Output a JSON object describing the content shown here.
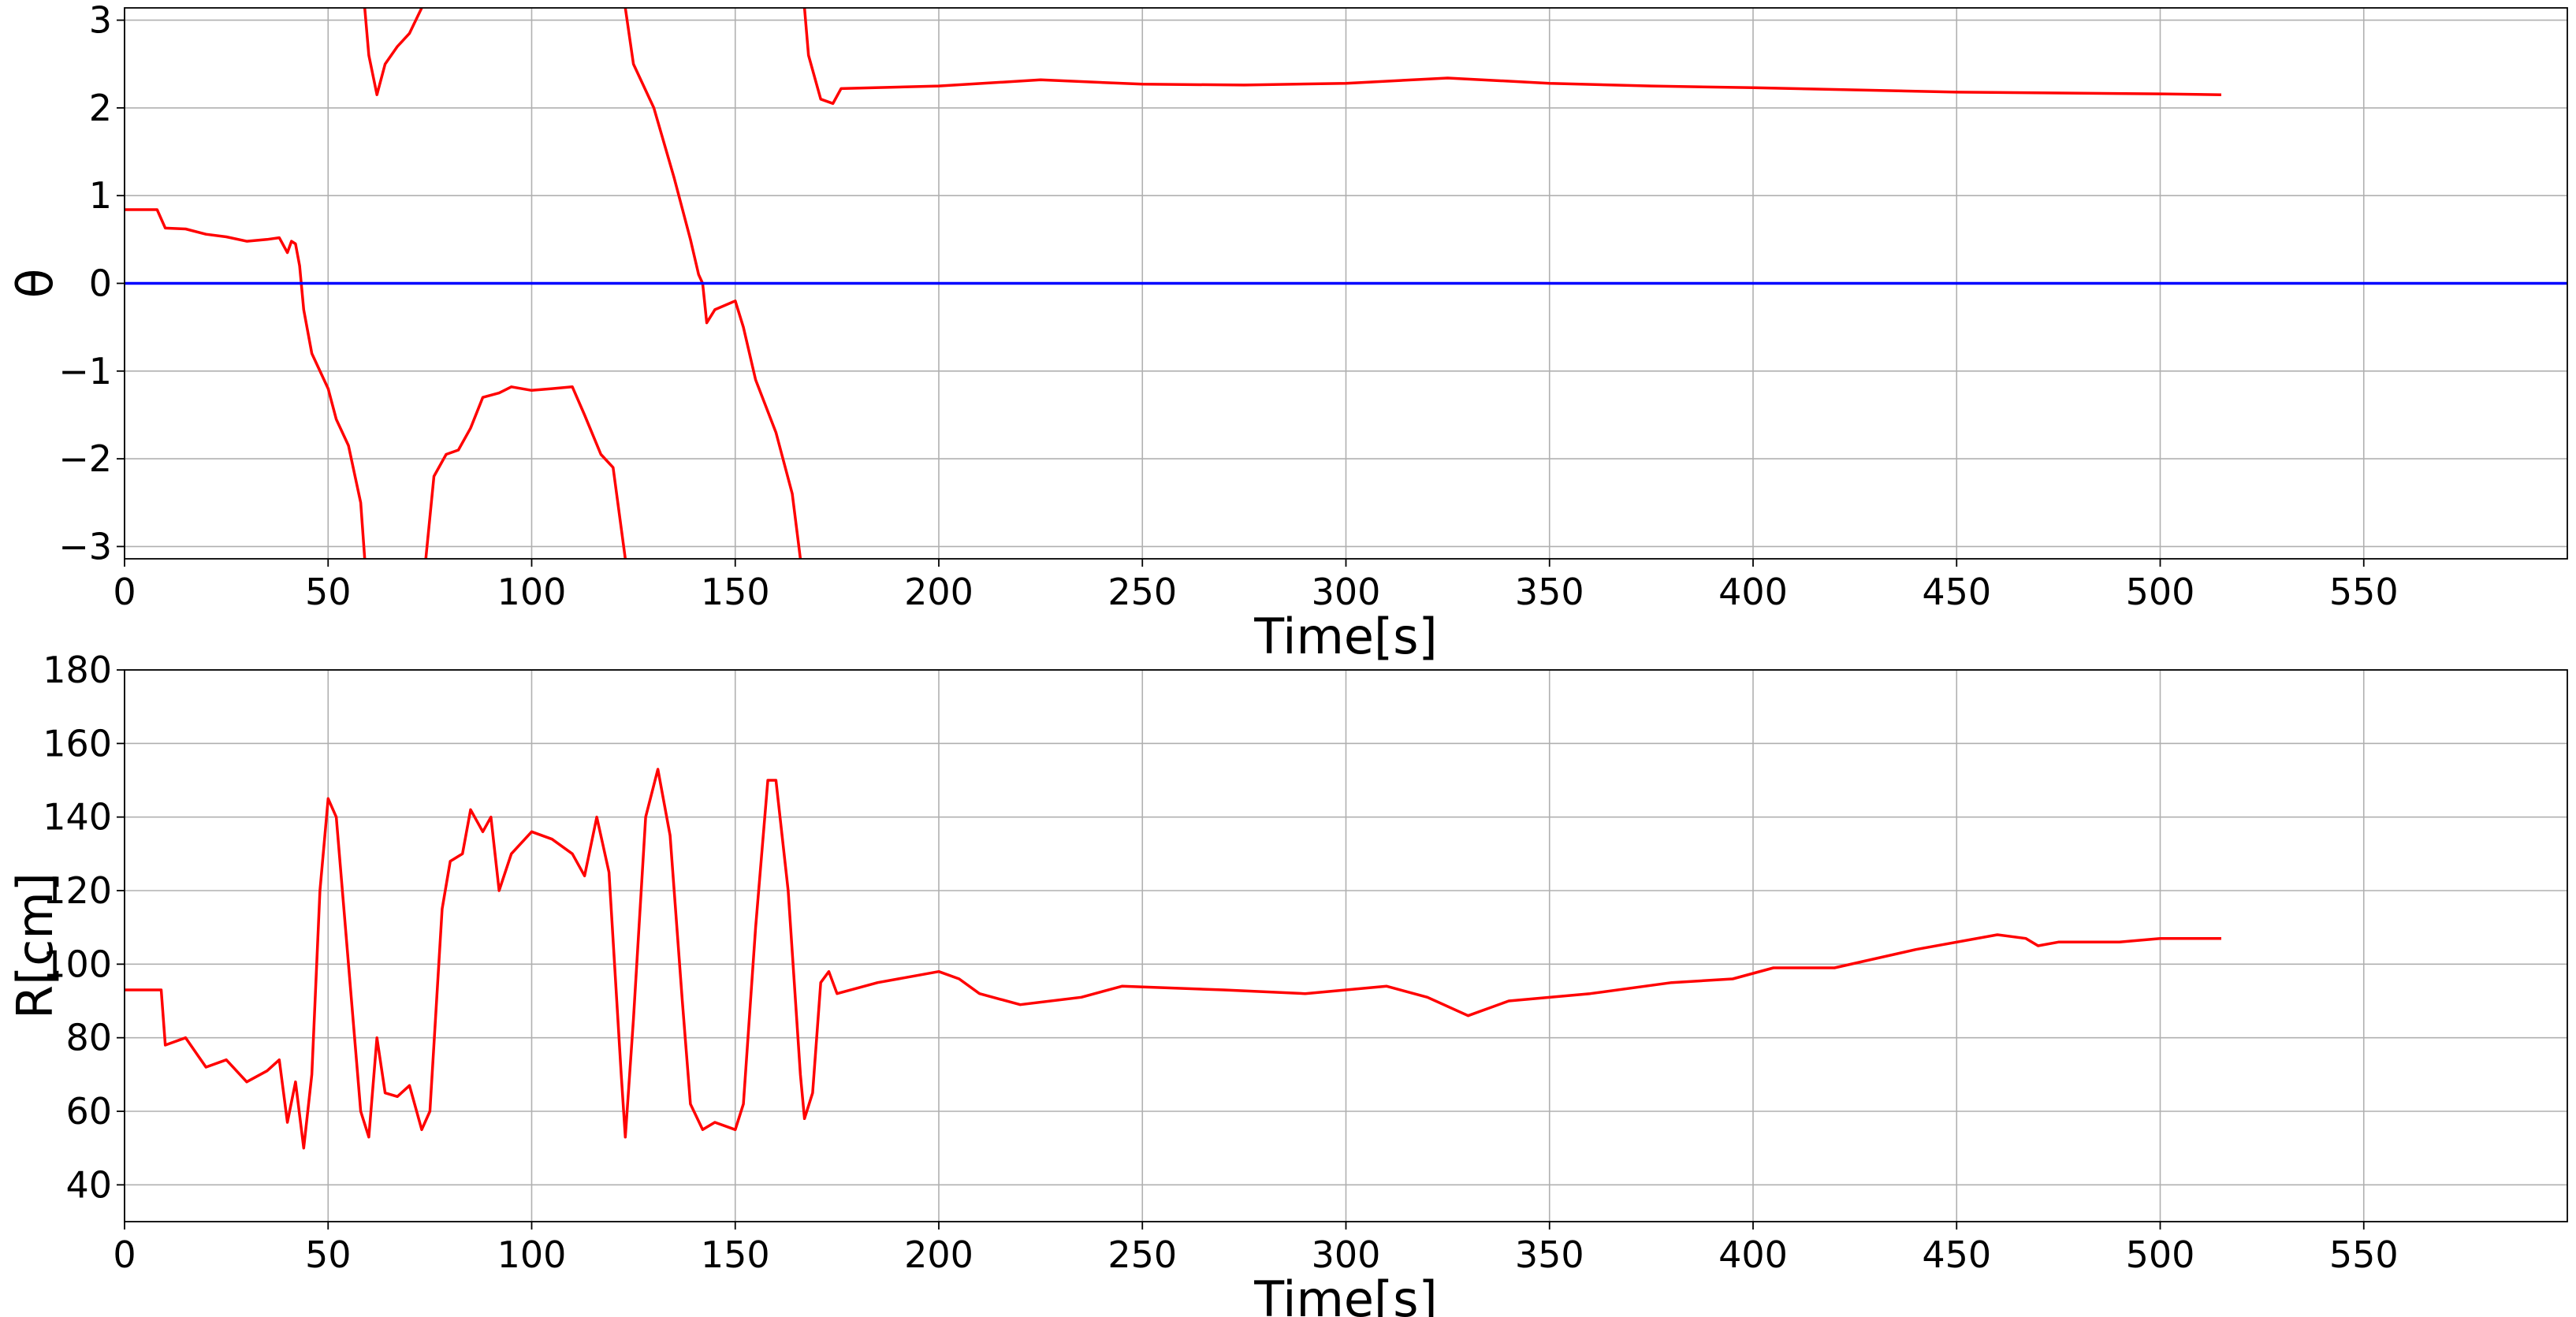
{
  "chart_data": [
    {
      "type": "line",
      "xlabel": "Time[s]",
      "ylabel": "θ",
      "xlim": [
        0,
        600
      ],
      "ylim": [
        -3.14,
        3.14
      ],
      "xticks": [
        0,
        50,
        100,
        150,
        200,
        250,
        300,
        350,
        400,
        450,
        500,
        550
      ],
      "yticks": [
        {
          "value": -3,
          "label": "−3"
        },
        {
          "value": -2,
          "label": "−2"
        },
        {
          "value": -1,
          "label": "−1"
        },
        0,
        1,
        2,
        3
      ],
      "grid": true,
      "series": [
        {
          "color": "#ff0000",
          "x": [
            0,
            8,
            10,
            15,
            20,
            25,
            30,
            35,
            38,
            40,
            41,
            42,
            43,
            44,
            46,
            50,
            52,
            55,
            58,
            59,
            59,
            59,
            60,
            62,
            64,
            67,
            70,
            73,
            73,
            74,
            76,
            79,
            82,
            85,
            88,
            92,
            95,
            100,
            105,
            110,
            113,
            117,
            120,
            123,
            123,
            123,
            125,
            130,
            135,
            139,
            141,
            142,
            143,
            145,
            150,
            152,
            155,
            160,
            164,
            166,
            166,
            167,
            168,
            171,
            174,
            176,
            200,
            225,
            250,
            275,
            300,
            325,
            350,
            375,
            400,
            450,
            500,
            515
          ],
          "values": [
            0.84,
            0.84,
            0.63,
            0.62,
            0.56,
            0.53,
            0.48,
            0.5,
            0.52,
            0.35,
            0.48,
            0.45,
            0.2,
            -0.3,
            -0.8,
            -1.2,
            -1.55,
            -1.85,
            -2.5,
            -3.14,
            null,
            3.14,
            2.6,
            2.15,
            2.5,
            2.7,
            2.85,
            3.14,
            null,
            -3.14,
            -2.2,
            -1.95,
            -1.9,
            -1.65,
            -1.3,
            -1.25,
            -1.18,
            -1.22,
            -1.2,
            -1.18,
            -1.5,
            -1.95,
            -2.1,
            -3.14,
            null,
            3.14,
            2.5,
            2.0,
            1.2,
            0.5,
            0.1,
            0.0,
            -0.45,
            -0.3,
            -0.2,
            -0.5,
            -1.1,
            -1.7,
            -2.4,
            -3.14,
            null,
            3.14,
            2.6,
            2.1,
            2.05,
            2.22,
            2.25,
            2.32,
            2.27,
            2.26,
            2.28,
            2.34,
            2.28,
            2.25,
            2.23,
            2.18,
            2.16,
            2.15
          ]
        },
        {
          "color": "#0000ff",
          "x": [
            0,
            600
          ],
          "values": [
            0,
            0
          ]
        }
      ]
    },
    {
      "type": "line",
      "xlabel": "Time[s]",
      "ylabel": "R[cm]",
      "xlim": [
        0,
        600
      ],
      "ylim": [
        30,
        180
      ],
      "xticks": [
        0,
        50,
        100,
        150,
        200,
        250,
        300,
        350,
        400,
        450,
        500,
        550
      ],
      "yticks": [
        40,
        60,
        80,
        100,
        120,
        140,
        160,
        180
      ],
      "grid": true,
      "series": [
        {
          "color": "#ff0000",
          "x": [
            0,
            9,
            10,
            15,
            20,
            25,
            30,
            35,
            38,
            40,
            42,
            44,
            46,
            48,
            50,
            52,
            55,
            58,
            60,
            62,
            64,
            67,
            70,
            73,
            75,
            78,
            80,
            83,
            85,
            88,
            90,
            92,
            95,
            100,
            105,
            110,
            113,
            116,
            119,
            122,
            123,
            125,
            128,
            131,
            134,
            137,
            139,
            142,
            145,
            150,
            152,
            155,
            158,
            160,
            163,
            166,
            167,
            169,
            171,
            173,
            175,
            185,
            200,
            205,
            210,
            220,
            235,
            245,
            270,
            290,
            310,
            320,
            330,
            340,
            360,
            380,
            395,
            405,
            420,
            440,
            460,
            467,
            470,
            475,
            490,
            500,
            515
          ],
          "values": [
            93,
            93,
            78,
            80,
            72,
            74,
            68,
            71,
            74,
            57,
            68,
            50,
            70,
            120,
            145,
            140,
            100,
            60,
            53,
            80,
            65,
            64,
            67,
            55,
            60,
            115,
            128,
            130,
            142,
            136,
            140,
            120,
            130,
            136,
            134,
            130,
            124,
            140,
            125,
            70,
            53,
            85,
            140,
            153,
            135,
            90,
            62,
            55,
            57,
            55,
            62,
            110,
            150,
            150,
            120,
            70,
            58,
            65,
            95,
            98,
            92,
            95,
            98,
            96,
            92,
            89,
            91,
            94,
            93,
            92,
            94,
            91,
            86,
            90,
            92,
            95,
            96,
            99,
            99,
            104,
            108,
            107,
            105,
            106,
            106,
            107,
            107
          ]
        }
      ]
    }
  ]
}
